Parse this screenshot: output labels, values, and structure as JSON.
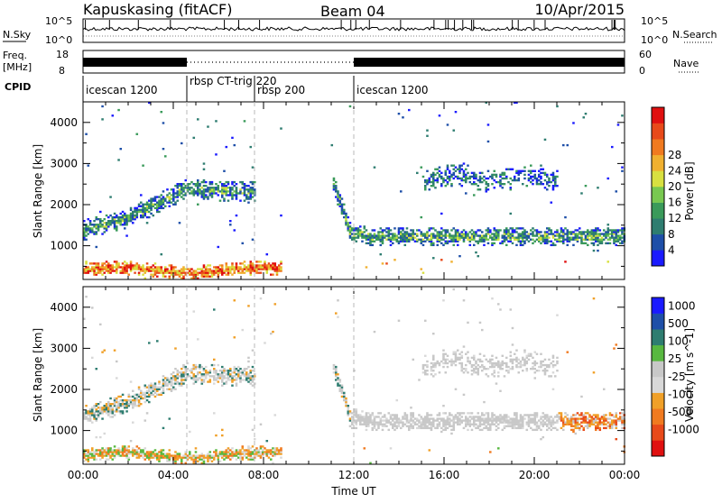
{
  "header": {
    "station": "Kapuskasing (fitACF)",
    "beam": "Beam 04",
    "date": "10/Apr/2015"
  },
  "strip_labels": {
    "nsky": "N.Sky",
    "nsky_ticks": [
      "10^5",
      "10^0"
    ],
    "nsearch": "N.Search",
    "nsearch_ticks": [
      "10^5",
      "10^0"
    ],
    "freq": "Freq.",
    "freq_unit": "[MHz]",
    "freq_ticks": [
      "18",
      "8"
    ],
    "nave": "Nave",
    "nave_ticks": [
      "60",
      "0"
    ],
    "cpid": "CPID"
  },
  "cpid_segments": [
    {
      "label": "icescan 1200",
      "start_hour": 0.0
    },
    {
      "label": "rbsp CT-trig 220",
      "start_hour": 4.6
    },
    {
      "label": "rbsp 200",
      "start_hour": 7.6
    },
    {
      "label": "icescan 1200",
      "start_hour": 12.0
    }
  ],
  "colors": {
    "power_scale": [
      "#1a1aff",
      "#1e4fa8",
      "#2e7d70",
      "#3a9a5a",
      "#78c850",
      "#d8e040",
      "#f0b030",
      "#f07a20",
      "#e84a1a",
      "#e01010"
    ],
    "velocity_scale": [
      "#1a1aff",
      "#1e4fa8",
      "#2e7d70",
      "#58b840",
      "#c8c8c8",
      "#d8d8d8",
      "#f0a028",
      "#f07a20",
      "#e84a1a",
      "#e01010"
    ]
  },
  "chart_data": [
    {
      "type": "heatmap",
      "title": "Power",
      "xlabel": "",
      "ylabel": "Slant Range [km]",
      "x_ticks": [
        "00:00",
        "04:00",
        "08:00",
        "12:00",
        "16:00",
        "20:00",
        "00:00"
      ],
      "y_ticks": [
        1000,
        2000,
        3000,
        4000
      ],
      "xlim_hours": [
        0,
        24
      ],
      "ylim_km": [
        180,
        4500
      ],
      "colorbar_label": "Power [dB]",
      "colorbar_ticks": [
        4,
        8,
        12,
        16,
        20,
        24,
        28
      ]
    },
    {
      "type": "heatmap",
      "title": "Velocity",
      "xlabel": "Time UT",
      "ylabel": "Slant Range [km]",
      "x_ticks": [
        "00:00",
        "04:00",
        "08:00",
        "12:00",
        "16:00",
        "20:00",
        "00:00"
      ],
      "y_ticks": [
        1000,
        2000,
        3000,
        4000
      ],
      "xlim_hours": [
        0,
        24
      ],
      "ylim_km": [
        180,
        4500
      ],
      "colorbar_label": "Velocity [m s^-1]",
      "colorbar_ticks": [
        1000,
        500,
        100,
        25,
        -25,
        -100,
        -500,
        -1000
      ]
    }
  ]
}
